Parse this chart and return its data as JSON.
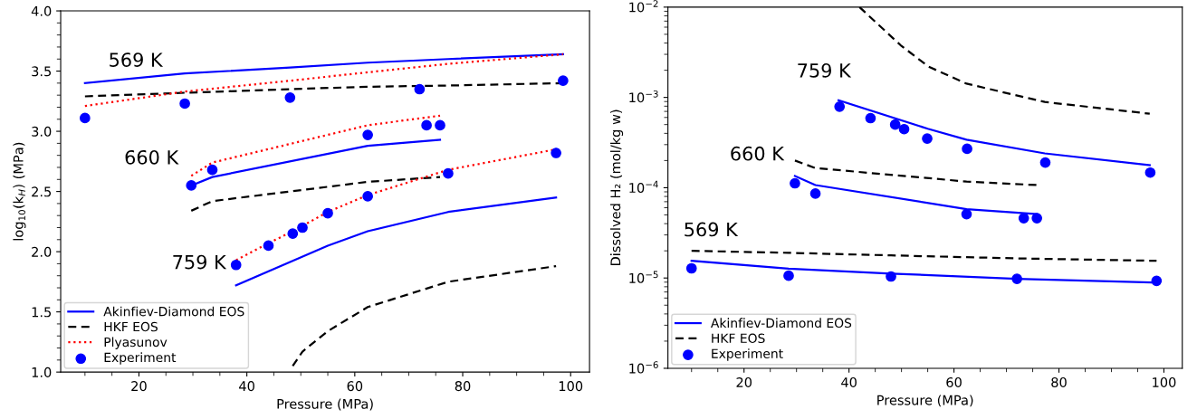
{
  "chart_data": [
    {
      "type": "line",
      "xlabel": "Pressure (MPa)",
      "ylabel": "log$_{10}$(k$_{H}$) (MPa)",
      "xlim": [
        5.5,
        103.5
      ],
      "ylim": [
        1.0,
        4.0
      ],
      "xticks": [
        {
          "value": 10,
          "label": null
        },
        {
          "value": 15,
          "label": null
        },
        20,
        {
          "value": 25,
          "label": null
        },
        {
          "value": 30,
          "label": null
        },
        {
          "value": 35,
          "label": null
        },
        40,
        {
          "value": 45,
          "label": null
        },
        {
          "value": 50,
          "label": null
        },
        {
          "value": 55,
          "label": null
        },
        60,
        {
          "value": 65,
          "label": null
        },
        {
          "value": 70,
          "label": null
        },
        {
          "value": 75,
          "label": null
        },
        80,
        {
          "value": 85,
          "label": null
        },
        {
          "value": 90,
          "label": null
        },
        {
          "value": 95,
          "label": null
        },
        100
      ],
      "yticks": [
        {
          "value": 1.0,
          "label": "1.0"
        },
        {
          "value": 1.1,
          "label": null
        },
        {
          "value": 1.2,
          "label": null
        },
        {
          "value": 1.3,
          "label": null
        },
        {
          "value": 1.4,
          "label": null
        },
        1.5,
        {
          "value": 1.6,
          "label": null
        },
        {
          "value": 1.7,
          "label": null
        },
        {
          "value": 1.8,
          "label": null
        },
        {
          "value": 1.9,
          "label": null
        },
        {
          "value": 2.0,
          "label": "2.0"
        },
        {
          "value": 2.1,
          "label": null
        },
        {
          "value": 2.2,
          "label": null
        },
        {
          "value": 2.3,
          "label": null
        },
        {
          "value": 2.4,
          "label": null
        },
        2.5,
        {
          "value": 2.6,
          "label": null
        },
        {
          "value": 2.7,
          "label": null
        },
        {
          "value": 2.8,
          "label": null
        },
        {
          "value": 2.9,
          "label": null
        },
        {
          "value": 3.0,
          "label": "3.0"
        },
        {
          "value": 3.1,
          "label": null
        },
        {
          "value": 3.2,
          "label": null
        },
        {
          "value": 3.3,
          "label": null
        },
        {
          "value": 3.4,
          "label": null
        },
        3.5,
        {
          "value": 3.6,
          "label": null
        },
        {
          "value": 3.7,
          "label": null
        },
        {
          "value": 3.8,
          "label": null
        },
        {
          "value": 3.9,
          "label": null
        },
        {
          "value": 4.0,
          "label": "4.0"
        }
      ],
      "grid": false,
      "legend": "bottom left",
      "series": [
        {
          "name": "Akinfiev-Diamond EOS",
          "line_style": "solid",
          "color": "#0000ff",
          "x": [
            10,
            28.5,
            48,
            62.4,
            77.3,
            98.6
          ],
          "values": [
            3.4,
            3.48,
            3.53,
            3.57,
            3.6,
            3.64
          ]
        },
        {
          "name": "HKF EOS",
          "line_style": "dashed",
          "color": "#000000",
          "x": [
            10,
            28.5,
            48,
            62.4,
            77.3,
            98.6
          ],
          "values": [
            3.29,
            3.32,
            3.35,
            3.37,
            3.38,
            3.4
          ]
        },
        {
          "name": "Plyasunov",
          "line_style": "dotted",
          "color": "#ff0000",
          "x": [
            10,
            28.5,
            48,
            62.4,
            77.3,
            98.6
          ],
          "values": [
            3.21,
            3.33,
            3.42,
            3.49,
            3.56,
            3.64
          ]
        },
        {
          "line_style": "solid",
          "color": "#0000ff",
          "x": [
            29.7,
            33.6,
            62.4,
            75.8
          ],
          "values": [
            2.55,
            2.62,
            2.88,
            2.93
          ]
        },
        {
          "line_style": "dashed",
          "color": "#000000",
          "x": [
            29.7,
            33.6,
            62.4,
            75.8
          ],
          "values": [
            2.34,
            2.42,
            2.58,
            2.62
          ]
        },
        {
          "line_style": "dotted",
          "color": "#ff0000",
          "x": [
            29.7,
            33.6,
            62.4,
            75.8
          ],
          "values": [
            2.63,
            2.74,
            3.05,
            3.13
          ]
        },
        {
          "line_style": "solid",
          "color": "#0000ff",
          "x": [
            38,
            55,
            62.4,
            77.3,
            97.3
          ],
          "values": [
            1.72,
            2.05,
            2.17,
            2.33,
            2.45
          ]
        },
        {
          "line_style": "dashed",
          "color": "#000000",
          "x": [
            48.5,
            50.3,
            55,
            62.4,
            77.3,
            97.3
          ],
          "values": [
            1.05,
            1.17,
            1.34,
            1.54,
            1.75,
            1.88
          ]
        },
        {
          "line_style": "dotted",
          "color": "#ff0000",
          "x": [
            38,
            44,
            48.5,
            55,
            62.4,
            77.3,
            97.3
          ],
          "values": [
            1.93,
            2.07,
            2.17,
            2.33,
            2.47,
            2.68,
            2.85
          ]
        },
        {
          "name": "Experiment",
          "type": "scatter",
          "marker": "circle",
          "color": "#0000ff",
          "x": [
            10,
            28.5,
            48,
            72,
            98.6
          ],
          "values": [
            3.11,
            3.23,
            3.28,
            3.35,
            3.42
          ]
        },
        {
          "type": "scatter",
          "marker": "circle",
          "color": "#0000ff",
          "x": [
            29.7,
            33.6,
            62.4,
            73.3,
            75.8
          ],
          "values": [
            2.55,
            2.68,
            2.97,
            3.05,
            3.05
          ]
        },
        {
          "type": "scatter",
          "marker": "circle",
          "color": "#0000ff",
          "x": [
            38,
            44,
            48.5,
            50.3,
            55,
            62.4,
            77.3,
            97.3
          ],
          "values": [
            1.89,
            2.05,
            2.15,
            2.2,
            2.32,
            2.46,
            2.65,
            2.82
          ]
        }
      ],
      "annotations": [
        "569 K",
        "660 K",
        "759 K"
      ]
    },
    {
      "type": "line",
      "xlabel": "Pressure (MPa)",
      "ylabel": "Dissolved H₂ (mol/kg w)",
      "log": "y",
      "xlim": [
        5.5,
        103.5
      ],
      "ylim": [
        1e-06,
        0.01
      ],
      "xticks": [
        {
          "value": 10,
          "label": null
        },
        {
          "value": 15,
          "label": null
        },
        20,
        {
          "value": 25,
          "label": null
        },
        {
          "value": 30,
          "label": null
        },
        {
          "value": 35,
          "label": null
        },
        40,
        {
          "value": 45,
          "label": null
        },
        {
          "value": 50,
          "label": null
        },
        {
          "value": 55,
          "label": null
        },
        60,
        {
          "value": 65,
          "label": null
        },
        {
          "value": 70,
          "label": null
        },
        {
          "value": 75,
          "label": null
        },
        80,
        {
          "value": 85,
          "label": null
        },
        {
          "value": 90,
          "label": null
        },
        {
          "value": 95,
          "label": null
        },
        100
      ],
      "yticks": [
        {
          "value": 1e-06,
          "label": "10$^{−6}$"
        },
        {
          "value": 1e-05,
          "label": "10$^{−5}$"
        },
        {
          "value": 0.0001,
          "label": "10$^{−4}$"
        },
        {
          "value": 0.001,
          "label": "10$^{−3}$"
        },
        {
          "value": 0.01,
          "label": "10$^{−2}$"
        }
      ],
      "grid": false,
      "legend": "bottom left",
      "series": [
        {
          "name": "Akinfiev-Diamond EOS",
          "line_style": "solid",
          "color": "#0000ff",
          "x": [
            10,
            28.5,
            48,
            72,
            98.6
          ],
          "values": [
            1.55e-05,
            1.27e-05,
            1.12e-05,
            9.8e-06,
            8.9e-06
          ]
        },
        {
          "name": "HKF EOS",
          "line_style": "dashed",
          "color": "#000000",
          "x": [
            10,
            28.5,
            48,
            72,
            98.6
          ],
          "values": [
            2e-05,
            1.9e-05,
            1.78e-05,
            1.65e-05,
            1.55e-05
          ]
        },
        {
          "line_style": "solid",
          "color": "#0000ff",
          "x": [
            29.7,
            33.6,
            62.4,
            75.8
          ],
          "values": [
            0.000135,
            0.000107,
            5.8e-05,
            5.1e-05
          ]
        },
        {
          "line_style": "dashed",
          "color": "#000000",
          "x": [
            29.7,
            33.6,
            62.4,
            75.8
          ],
          "values": [
            0.0002,
            0.000165,
            0.000117,
            0.000107
          ]
        },
        {
          "line_style": "solid",
          "color": "#0000ff",
          "x": [
            38,
            55,
            62.4,
            77.3,
            97.3
          ],
          "values": [
            0.00093,
            0.00045,
            0.00034,
            0.00024,
            0.000178
          ]
        },
        {
          "line_style": "dashed",
          "color": "#000000",
          "x": [
            42,
            49.8,
            55.1,
            62.4,
            77.3,
            97.3
          ],
          "values": [
            0.01,
            0.0038,
            0.0022,
            0.00142,
            0.00089,
            0.00066
          ]
        },
        {
          "name": "Experiment",
          "type": "scatter",
          "marker": "circle",
          "color": "#0000ff",
          "x": [
            10,
            28.5,
            48,
            72,
            98.6
          ],
          "values": [
            1.28e-05,
            1.06e-05,
            1.04e-05,
            9.8e-06,
            9.3e-06
          ]
        },
        {
          "type": "scatter",
          "marker": "circle",
          "color": "#0000ff",
          "x": [
            29.7,
            33.6,
            62.4,
            73.3,
            75.8
          ],
          "values": [
            0.000112,
            8.6e-05,
            5.1e-05,
            4.6e-05,
            4.6e-05
          ]
        },
        {
          "type": "scatter",
          "marker": "circle",
          "color": "#0000ff",
          "x": [
            38.2,
            44.1,
            48.8,
            50.5,
            54.9,
            62.5,
            77.4,
            97.4
          ],
          "values": [
            0.00079,
            0.00059,
            0.0005,
            0.000445,
            0.00035,
            0.00027,
            0.00019,
            0.000147
          ]
        }
      ],
      "annotations": [
        "759 K",
        "660 K",
        "569 K"
      ]
    }
  ]
}
